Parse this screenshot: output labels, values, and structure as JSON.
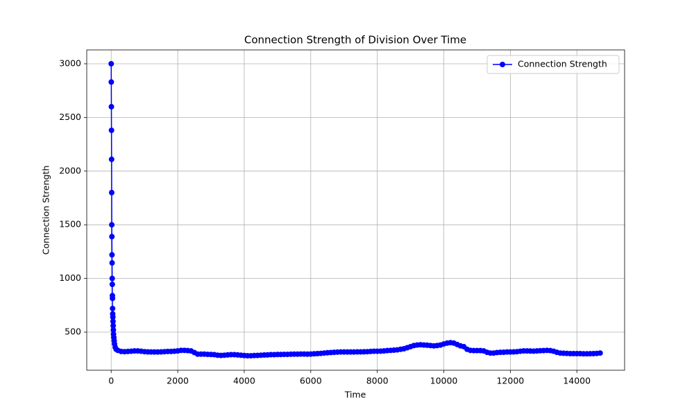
{
  "chart_data": {
    "type": "line",
    "title": "Connection Strength of Division Over Time",
    "x_label": "Time",
    "y_label": "Connection Strength",
    "x": [
      0,
      3,
      6,
      9,
      12,
      15,
      18,
      21,
      24,
      27,
      30,
      33,
      36,
      39,
      42,
      45,
      50,
      55,
      60,
      65,
      70,
      80,
      90,
      100,
      120,
      150,
      200,
      300,
      400,
      500,
      600,
      700,
      800,
      900,
      1000,
      1100,
      1200,
      1300,
      1400,
      1500,
      1600,
      1700,
      1800,
      1900,
      2000,
      2100,
      2200,
      2300,
      2400,
      2500,
      2600,
      2700,
      2800,
      2900,
      3000,
      3100,
      3200,
      3300,
      3400,
      3500,
      3600,
      3700,
      3800,
      3900,
      4000,
      4100,
      4200,
      4300,
      4400,
      4500,
      4600,
      4700,
      4800,
      4900,
      5000,
      5100,
      5200,
      5300,
      5400,
      5500,
      5600,
      5700,
      5800,
      5900,
      6000,
      6100,
      6200,
      6300,
      6400,
      6500,
      6600,
      6700,
      6800,
      6900,
      7000,
      7100,
      7200,
      7300,
      7400,
      7500,
      7600,
      7700,
      7800,
      7900,
      8000,
      8100,
      8200,
      8300,
      8400,
      8500,
      8600,
      8700,
      8800,
      8900,
      9000,
      9100,
      9200,
      9300,
      9400,
      9500,
      9600,
      9700,
      9800,
      9900,
      10000,
      10100,
      10200,
      10300,
      10400,
      10500,
      10600,
      10700,
      10800,
      10900,
      11000,
      11100,
      11200,
      11300,
      11400,
      11500,
      11600,
      11700,
      11800,
      11900,
      12000,
      12100,
      12200,
      12300,
      12400,
      12500,
      12600,
      12700,
      12800,
      12900,
      13000,
      13100,
      13200,
      13300,
      13400,
      13500,
      13600,
      13700,
      13800,
      13900,
      14000,
      14100,
      14200,
      14300,
      14400,
      14500,
      14600,
      14700
    ],
    "series": [
      {
        "name": "Connection Strength",
        "color": "#0000ff",
        "values": [
          3000,
          2830,
          2600,
          2380,
          2110,
          1800,
          1500,
          1390,
          1220,
          1145,
          1000,
          945,
          840,
          815,
          720,
          670,
          640,
          600,
          560,
          520,
          480,
          450,
          420,
          390,
          360,
          340,
          330,
          320,
          318,
          320,
          322,
          325,
          325,
          322,
          318,
          316,
          315,
          315,
          315,
          316,
          318,
          320,
          320,
          322,
          325,
          330,
          330,
          328,
          325,
          310,
          295,
          295,
          295,
          293,
          292,
          290,
          285,
          283,
          285,
          288,
          290,
          290,
          288,
          285,
          282,
          280,
          280,
          282,
          283,
          285,
          287,
          288,
          290,
          290,
          292,
          292,
          293,
          293,
          294,
          295,
          295,
          296,
          296,
          295,
          296,
          298,
          300,
          302,
          305,
          308,
          310,
          312,
          314,
          315,
          315,
          315,
          315,
          315,
          316,
          316,
          317,
          318,
          320,
          322,
          322,
          323,
          325,
          328,
          330,
          332,
          335,
          340,
          345,
          355,
          365,
          375,
          380,
          382,
          380,
          378,
          375,
          372,
          375,
          380,
          390,
          398,
          402,
          398,
          385,
          372,
          365,
          340,
          330,
          328,
          328,
          328,
          325,
          312,
          305,
          305,
          310,
          312,
          313,
          315,
          315,
          316,
          318,
          322,
          325,
          325,
          324,
          323,
          325,
          327,
          328,
          330,
          328,
          322,
          312,
          305,
          303,
          302,
          300,
          300,
          300,
          300,
          298,
          298,
          299,
          300,
          302,
          305
        ]
      }
    ],
    "xlim": [
      -735,
      15435
    ],
    "ylim": [
      145,
      3129
    ],
    "xticks": [
      0,
      2000,
      4000,
      6000,
      8000,
      10000,
      12000,
      14000
    ],
    "yticks": [
      500,
      1000,
      1500,
      2000,
      2500,
      3000
    ],
    "grid": true,
    "legend": "upper right"
  }
}
